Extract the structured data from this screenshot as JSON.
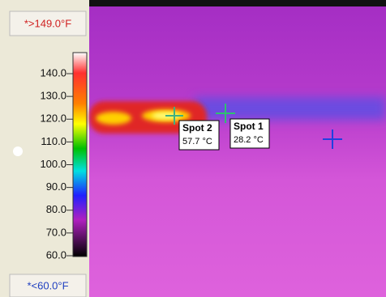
{
  "scale": {
    "max_label": "*>149.0°F",
    "min_label": "*<60.0°F",
    "ticks": [
      "140.0",
      "130.0",
      "120.0",
      "110.0",
      "100.0",
      "90.0",
      "80.0",
      "70.0",
      "60.0"
    ]
  },
  "spots": [
    {
      "name": "Spot 2",
      "reading": "57.7 °C"
    },
    {
      "name": "Spot 1",
      "reading": "28.2 °C"
    }
  ]
}
